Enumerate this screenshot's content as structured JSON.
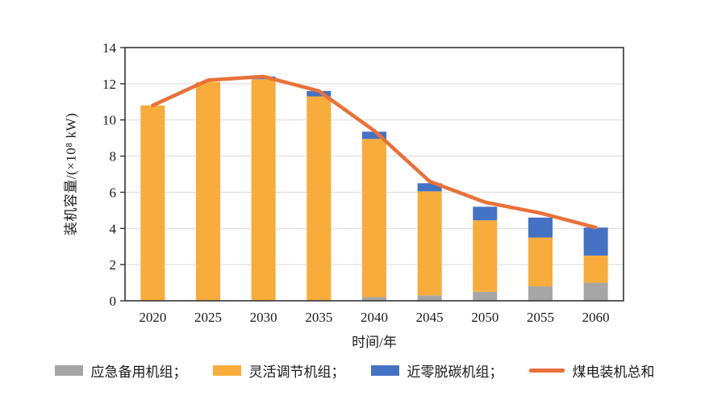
{
  "chart_data": {
    "type": "bar",
    "stacked": true,
    "title": "",
    "categories": [
      "2020",
      "2025",
      "2030",
      "2035",
      "2040",
      "2045",
      "2050",
      "2055",
      "2060"
    ],
    "series": [
      {
        "name": "应急备用机组",
        "type": "bar",
        "color": "#A6A6A6",
        "values": [
          0,
          0,
          0,
          0,
          0.2,
          0.3,
          0.5,
          0.8,
          1.0
        ]
      },
      {
        "name": "灵活调节机组",
        "type": "bar",
        "color": "#F7AC3B",
        "values": [
          10.8,
          12.1,
          12.25,
          11.3,
          8.75,
          5.75,
          3.95,
          2.7,
          1.5
        ]
      },
      {
        "name": "近零脱碳机组",
        "type": "bar",
        "color": "#4472C4",
        "values": [
          0,
          0,
          0.15,
          0.3,
          0.4,
          0.45,
          0.75,
          1.1,
          1.55
        ]
      },
      {
        "name": "煤电装机总和",
        "type": "line",
        "color": "#E8713A",
        "values": [
          10.8,
          12.2,
          12.4,
          11.6,
          9.4,
          6.6,
          5.45,
          4.85,
          4.05
        ]
      }
    ],
    "xlabel": "时间/年",
    "ylabel": "装机容量/(×10⁸ kW)",
    "ylim": [
      0,
      14
    ],
    "ytick_step": 2,
    "yticks": [
      0,
      2,
      4,
      6,
      8,
      10,
      12,
      14
    ],
    "grid": "horizontal",
    "gridline_color": "#D9D9D9",
    "frame_color": "#333333",
    "legend_position": "bottom",
    "legend": [
      {
        "label": "应急备用机组；",
        "color": "#A6A6A6",
        "swatch": "rect"
      },
      {
        "label": "灵活调节机组；",
        "color": "#F7AC3B",
        "swatch": "rect"
      },
      {
        "label": "近零脱碳机组；",
        "color": "#4472C4",
        "swatch": "rect"
      },
      {
        "label": "煤电装机总和",
        "color": "#E8713A",
        "swatch": "line"
      }
    ]
  }
}
